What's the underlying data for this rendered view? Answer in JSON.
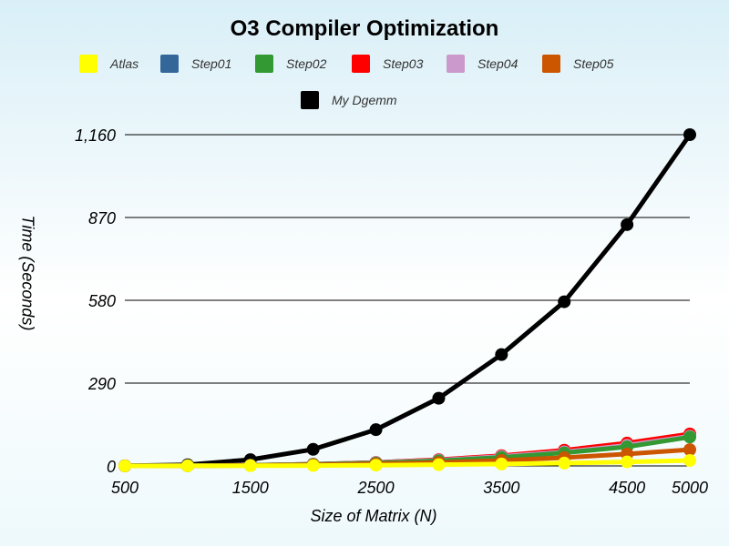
{
  "chart_data": {
    "type": "line",
    "title": "O3 Compiler Optimization",
    "xlabel": "Size of Matrix (N)",
    "ylabel": "Time (Seconds)",
    "x": [
      500,
      1000,
      1500,
      2000,
      2500,
      3000,
      3500,
      4000,
      4500,
      5000
    ],
    "xticks": [
      "500",
      "1500",
      "2500",
      "3500",
      "4500",
      "5000"
    ],
    "xtick_values": [
      500,
      1500,
      2500,
      3500,
      4500,
      5000
    ],
    "yticks": [
      "0",
      "290",
      "580",
      "870",
      "1,160"
    ],
    "ytick_values": [
      0,
      290,
      580,
      870,
      1160
    ],
    "ylim": [
      0,
      1160
    ],
    "grid": "horizontal",
    "legend_position": "top",
    "series": [
      {
        "name": "My Dgemm",
        "color": "#000000",
        "values": [
          0.4,
          4,
          22,
          58,
          127,
          237,
          390,
          575,
          845,
          1160
        ]
      },
      {
        "name": "Step01",
        "color": "#336699",
        "values": [
          0.1,
          0.8,
          2.5,
          6,
          12,
          21,
          34,
          51,
          74,
          110
        ]
      },
      {
        "name": "Step03",
        "color": "#ff0000",
        "values": [
          0.1,
          0.8,
          2.5,
          6,
          12,
          22,
          36,
          55,
          80,
          112
        ]
      },
      {
        "name": "Step04",
        "color": "#cc99cc",
        "values": [
          0.1,
          0.7,
          2.3,
          5.5,
          11,
          20,
          33,
          49,
          72,
          104
        ]
      },
      {
        "name": "Step02",
        "color": "#339933",
        "values": [
          0.1,
          0.7,
          2.2,
          5.2,
          10,
          18,
          30,
          46,
          67,
          101
        ]
      },
      {
        "name": "Step05",
        "color": "#cc5500",
        "values": [
          0.1,
          0.5,
          1.5,
          3.5,
          7,
          12,
          19,
          29,
          42,
          57
        ]
      },
      {
        "name": "Atlas",
        "color": "#ffff00",
        "values": [
          0.05,
          0.2,
          0.6,
          1.3,
          2.5,
          4.2,
          6.6,
          9.8,
          14,
          19
        ]
      }
    ],
    "legend": [
      {
        "name": "Atlas",
        "color": "#ffff00"
      },
      {
        "name": "Step01",
        "color": "#336699"
      },
      {
        "name": "Step02",
        "color": "#339933"
      },
      {
        "name": "Step03",
        "color": "#ff0000"
      },
      {
        "name": "Step04",
        "color": "#cc99cc"
      },
      {
        "name": "Step05",
        "color": "#cc5500"
      },
      {
        "name": "My Dgemm",
        "color": "#000000"
      }
    ]
  }
}
